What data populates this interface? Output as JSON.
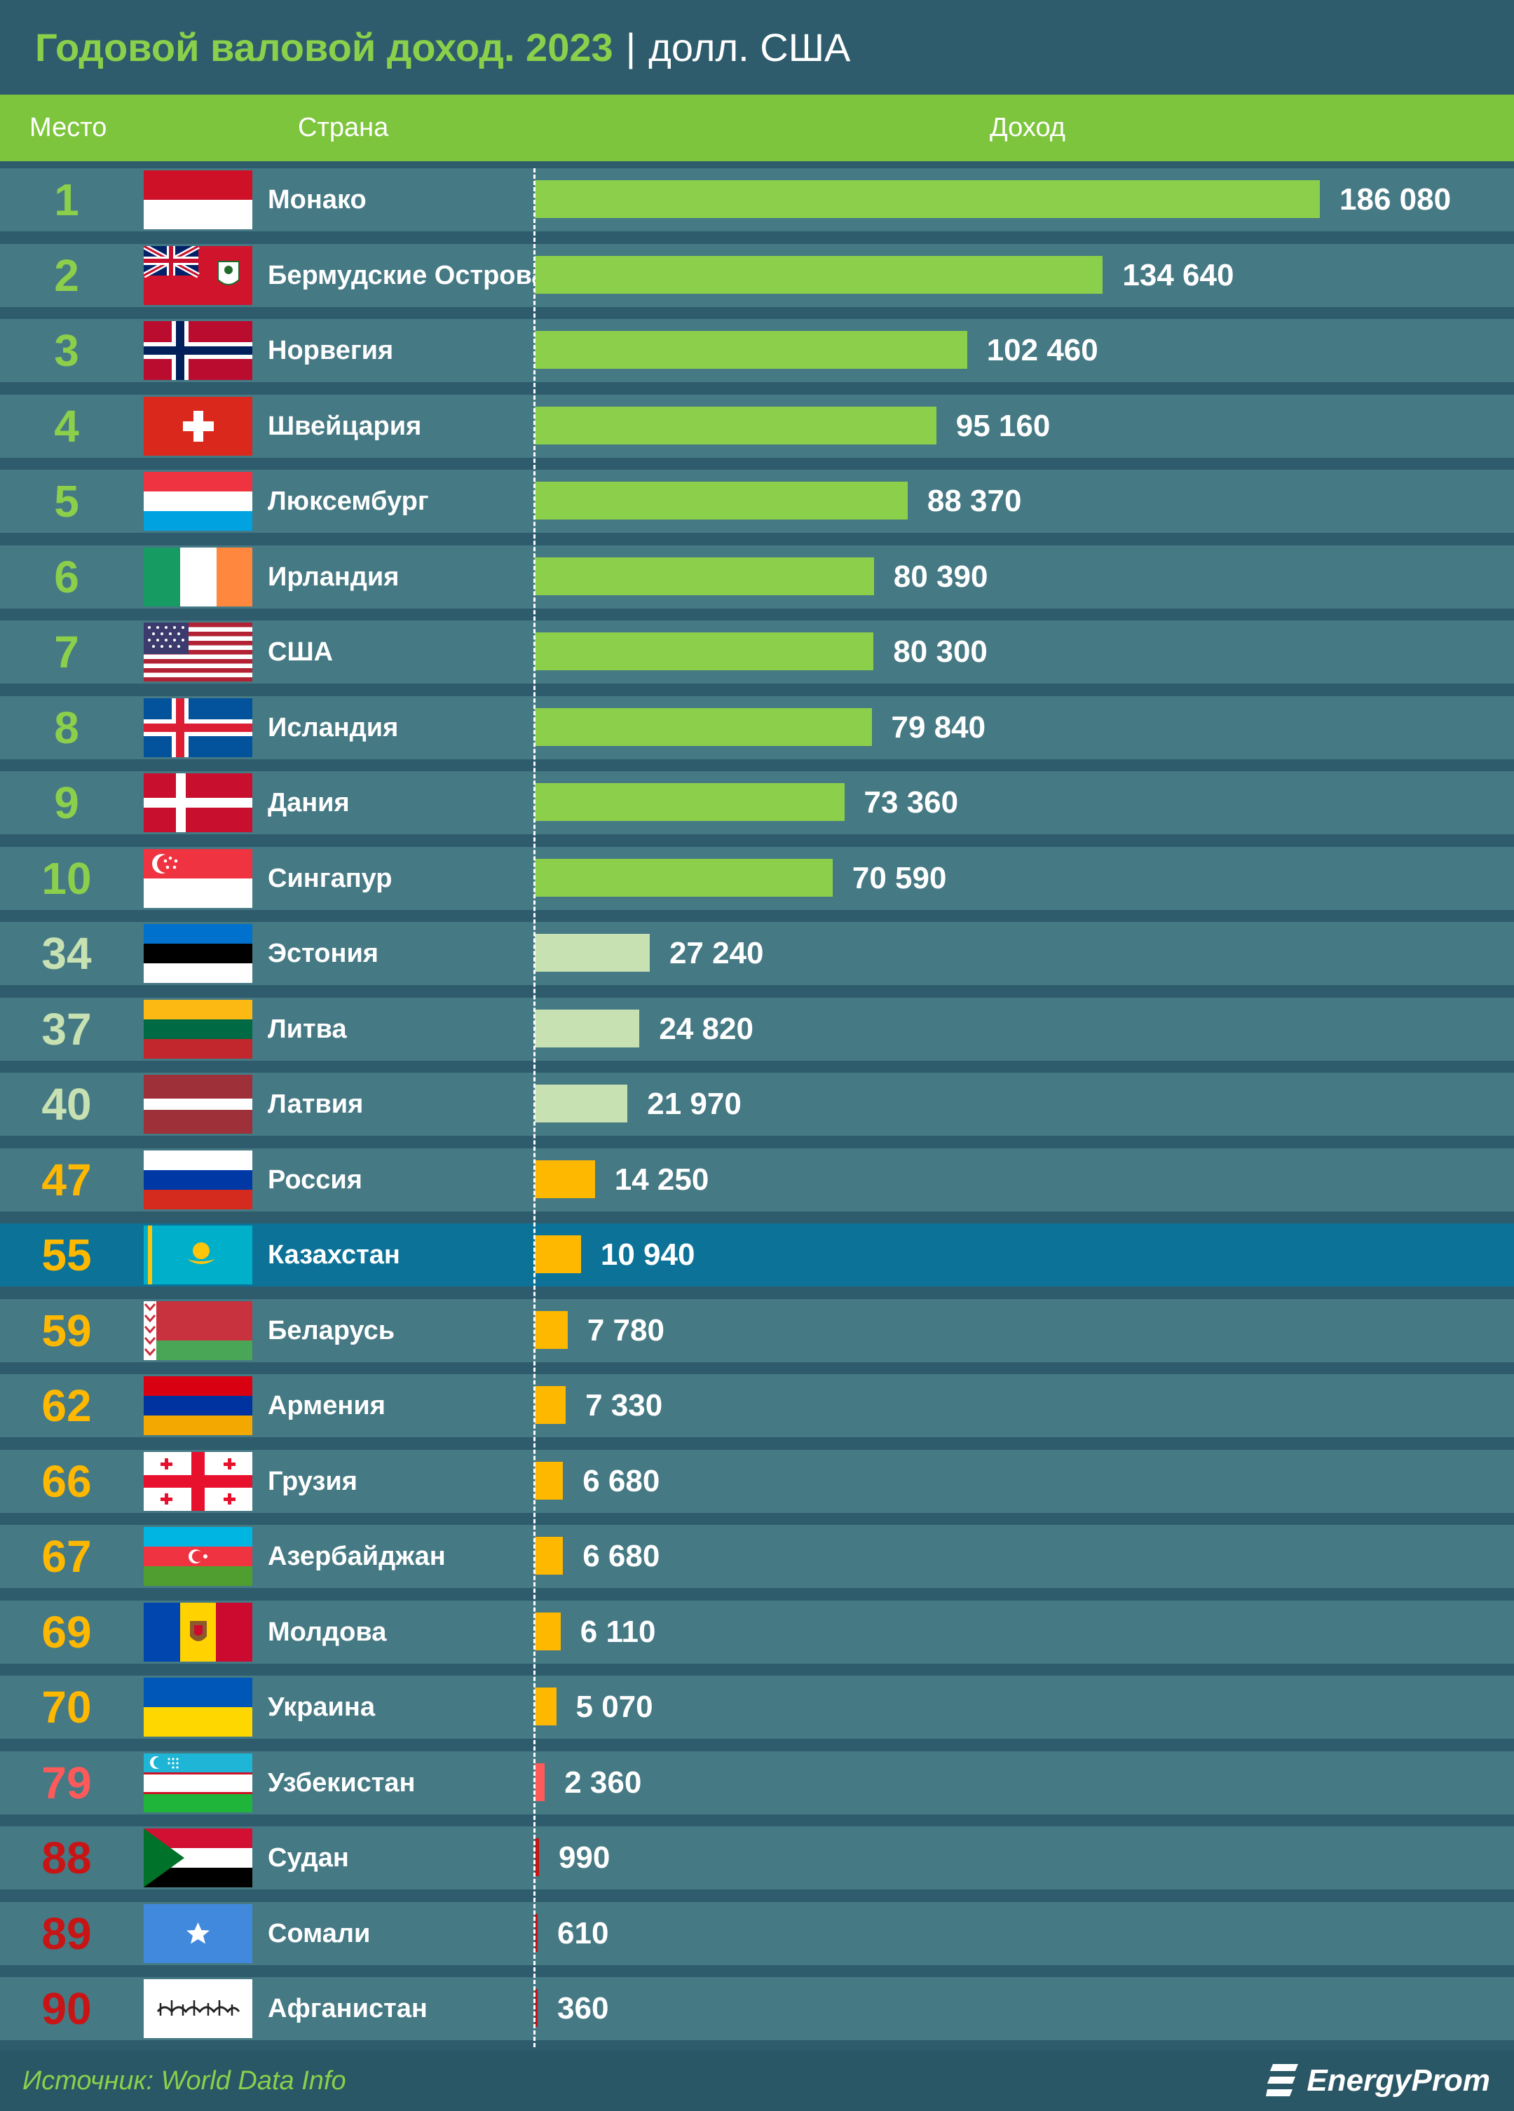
{
  "title": {
    "main": "Годовой валовой доход. 2023",
    "separator": "|",
    "unit": "долл. США"
  },
  "header": {
    "rank": "Место",
    "country": "Страна",
    "income": "Доход"
  },
  "colors": {
    "background": "#2e5c6c",
    "row": "#457984",
    "highlight_row": "#0c7297",
    "header": "#7dc53c",
    "top10_bar": "#8ccf4b",
    "baltic_bar": "#c7e1b2",
    "cis_bar": "#ffb800",
    "low_bar": "#ff5a5a",
    "lowest_bar": "#c81414"
  },
  "chart_data": {
    "type": "bar",
    "orientation": "horizontal",
    "title": "Годовой валовой доход. 2023",
    "unit": "долл. США",
    "xlim": [
      0,
      186080
    ],
    "grid": false,
    "categories": [
      "Монако",
      "Бермудские Острова",
      "Норвегия",
      "Швейцария",
      "Люксембург",
      "Ирландия",
      "США",
      "Исландия",
      "Дания",
      "Сингапур",
      "Эстония",
      "Литва",
      "Латвия",
      "Россия",
      "Казахстан",
      "Беларусь",
      "Армения",
      "Грузия",
      "Азербайджан",
      "Молдова",
      "Украина",
      "Узбекистан",
      "Судан",
      "Сомали",
      "Афганистан"
    ],
    "values": [
      186080,
      134640,
      102460,
      95160,
      88370,
      80390,
      80300,
      79840,
      73360,
      70590,
      27240,
      24820,
      21970,
      14250,
      10940,
      7780,
      7330,
      6680,
      6680,
      6110,
      5070,
      2360,
      990,
      610,
      360
    ],
    "rows": [
      {
        "rank": "1",
        "country": "Монако",
        "value": 186080,
        "label": "186 080",
        "flag": "monaco-flag",
        "rank_color": "#8ccf4b",
        "bar_color": "#8ccf4b"
      },
      {
        "rank": "2",
        "country": "Бермудские Острова",
        "value": 134640,
        "label": "134 640",
        "flag": "bermuda-flag",
        "rank_color": "#8ccf4b",
        "bar_color": "#8ccf4b"
      },
      {
        "rank": "3",
        "country": "Норвегия",
        "value": 102460,
        "label": "102 460",
        "flag": "norway-flag",
        "rank_color": "#8ccf4b",
        "bar_color": "#8ccf4b"
      },
      {
        "rank": "4",
        "country": "Швейцария",
        "value": 95160,
        "label": "95 160",
        "flag": "switzerland-flag",
        "rank_color": "#8ccf4b",
        "bar_color": "#8ccf4b"
      },
      {
        "rank": "5",
        "country": "Люксембург",
        "value": 88370,
        "label": "88 370",
        "flag": "luxembourg-flag",
        "rank_color": "#8ccf4b",
        "bar_color": "#8ccf4b"
      },
      {
        "rank": "6",
        "country": "Ирландия",
        "value": 80390,
        "label": "80 390",
        "flag": "ireland-flag",
        "rank_color": "#8ccf4b",
        "bar_color": "#8ccf4b"
      },
      {
        "rank": "7",
        "country": "США",
        "value": 80300,
        "label": "80 300",
        "flag": "usa-flag",
        "rank_color": "#8ccf4b",
        "bar_color": "#8ccf4b"
      },
      {
        "rank": "8",
        "country": "Исландия",
        "value": 79840,
        "label": "79 840",
        "flag": "iceland-flag",
        "rank_color": "#8ccf4b",
        "bar_color": "#8ccf4b"
      },
      {
        "rank": "9",
        "country": "Дания",
        "value": 73360,
        "label": "73 360",
        "flag": "denmark-flag",
        "rank_color": "#8ccf4b",
        "bar_color": "#8ccf4b"
      },
      {
        "rank": "10",
        "country": "Сингапур",
        "value": 70590,
        "label": "70 590",
        "flag": "singapore-flag",
        "rank_color": "#8ccf4b",
        "bar_color": "#8ccf4b"
      },
      {
        "rank": "34",
        "country": "Эстония",
        "value": 27240,
        "label": "27 240",
        "flag": "estonia-flag",
        "rank_color": "#c7e1b2",
        "bar_color": "#c7e1b2"
      },
      {
        "rank": "37",
        "country": "Литва",
        "value": 24820,
        "label": "24 820",
        "flag": "lithuania-flag",
        "rank_color": "#c7e1b2",
        "bar_color": "#c7e1b2"
      },
      {
        "rank": "40",
        "country": "Латвия",
        "value": 21970,
        "label": "21 970",
        "flag": "latvia-flag",
        "rank_color": "#c7e1b2",
        "bar_color": "#c7e1b2"
      },
      {
        "rank": "47",
        "country": "Россия",
        "value": 14250,
        "label": "14 250",
        "flag": "russia-flag",
        "rank_color": "#ffb800",
        "bar_color": "#ffb800"
      },
      {
        "rank": "55",
        "country": "Казахстан",
        "value": 10940,
        "label": "10 940",
        "flag": "kazakhstan-flag",
        "rank_color": "#ffb800",
        "bar_color": "#ffb800",
        "highlight": true
      },
      {
        "rank": "59",
        "country": "Беларусь",
        "value": 7780,
        "label": "7 780",
        "flag": "belarus-flag",
        "rank_color": "#ffb800",
        "bar_color": "#ffb800"
      },
      {
        "rank": "62",
        "country": "Армения",
        "value": 7330,
        "label": "7 330",
        "flag": "armenia-flag",
        "rank_color": "#ffb800",
        "bar_color": "#ffb800"
      },
      {
        "rank": "66",
        "country": "Грузия",
        "value": 6680,
        "label": "6 680",
        "flag": "georgia-flag",
        "rank_color": "#ffb800",
        "bar_color": "#ffb800"
      },
      {
        "rank": "67",
        "country": "Азербайджан",
        "value": 6680,
        "label": "6 680",
        "flag": "azerbaijan-flag",
        "rank_color": "#ffb800",
        "bar_color": "#ffb800"
      },
      {
        "rank": "69",
        "country": "Молдова",
        "value": 6110,
        "label": "6 110",
        "flag": "moldova-flag",
        "rank_color": "#ffb800",
        "bar_color": "#ffb800"
      },
      {
        "rank": "70",
        "country": "Украина",
        "value": 5070,
        "label": "5 070",
        "flag": "ukraine-flag",
        "rank_color": "#ffb800",
        "bar_color": "#ffb800"
      },
      {
        "rank": "79",
        "country": "Узбекистан",
        "value": 2360,
        "label": "2 360",
        "flag": "uzbekistan-flag",
        "rank_color": "#ff5a5a",
        "bar_color": "#ff5a5a"
      },
      {
        "rank": "88",
        "country": "Судан",
        "value": 990,
        "label": "990",
        "flag": "sudan-flag",
        "rank_color": "#c81414",
        "bar_color": "#c81414"
      },
      {
        "rank": "89",
        "country": "Сомали",
        "value": 610,
        "label": "610",
        "flag": "somalia-flag",
        "rank_color": "#c81414",
        "bar_color": "#c81414"
      },
      {
        "rank": "90",
        "country": "Афганистан",
        "value": 360,
        "label": "360",
        "flag": "afghanistan-flag",
        "rank_color": "#c81414",
        "bar_color": "#c81414"
      }
    ]
  },
  "footer": {
    "source": "Источник: World Data Info",
    "logo": "EnergyProm",
    "logo_icon": "energyprom-logo-icon"
  }
}
